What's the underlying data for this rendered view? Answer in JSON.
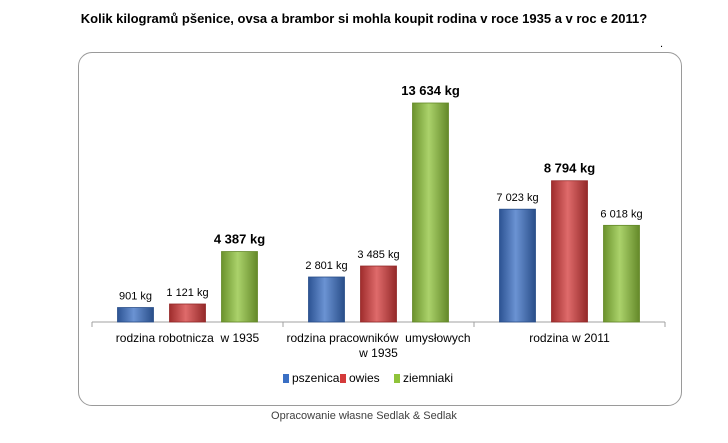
{
  "title": "Kolik kilogramů pšenice, ovsa a brambor si mohla koupit rodina v roce 1935 a v roc e 2011?",
  "title_dot": ".",
  "caption": "Opracowanie własne Sedlak & Sedlak",
  "colors": {
    "pszenica": "#3a6fc4",
    "owies": "#d43a3a",
    "ziemniaki": "#8fc33a",
    "axis": "#a0a0a0"
  },
  "chart_data": {
    "type": "bar",
    "title": "Kolik kilogramů pšenice, ovsa a brambor si mohla koupit rodina v roce 1935 a v roc e 2011?",
    "categories": [
      [
        "rodzina robotnicza  w 1935"
      ],
      [
        "rodzina pracowników  umysłowych",
        "w 1935"
      ],
      [
        "rodzina w 2011"
      ]
    ],
    "series": [
      {
        "name": "pszenica",
        "values": [
          901,
          2801,
          7023
        ],
        "labels": [
          "901 kg",
          "2 801 kg",
          "7 023 kg"
        ]
      },
      {
        "name": "owies",
        "values": [
          1121,
          3485,
          8794
        ],
        "labels": [
          "1 121 kg",
          "3 485 kg",
          "8 794 kg"
        ]
      },
      {
        "name": "ziemniaki",
        "values": [
          4387,
          13634,
          6018
        ],
        "labels": [
          "4 387 kg",
          "13 634 kg",
          "6 018 kg"
        ]
      }
    ],
    "bold_labels": [
      [
        2,
        1
      ],
      [
        0,
        2
      ],
      [
        1,
        2
      ]
    ],
    "ylim": [
      0,
      13634
    ],
    "grid": false,
    "legend_position": "bottom"
  }
}
